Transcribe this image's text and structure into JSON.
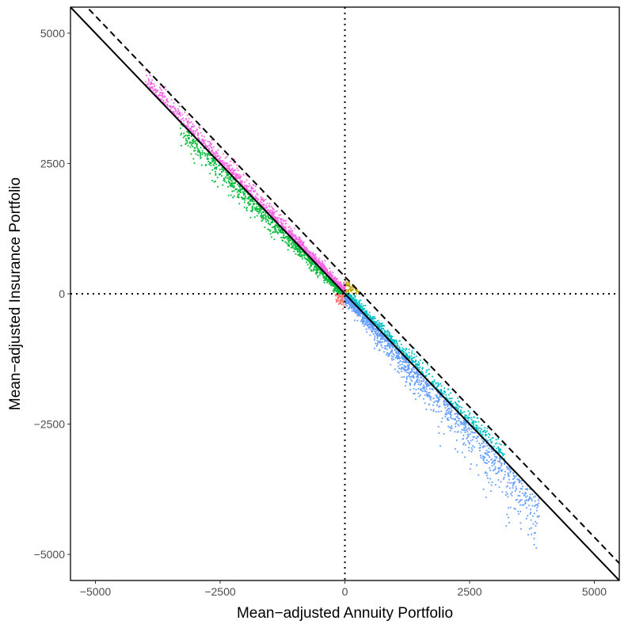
{
  "chart_data": {
    "type": "scatter",
    "title": "",
    "xlabel": "Mean−adjusted Annuity Portfolio",
    "ylabel": "Mean−adjusted Insurance Portfolio",
    "xlim": [
      -5500,
      5500
    ],
    "ylim": [
      -5500,
      5500
    ],
    "x_ticks": [
      {
        "value": -5000,
        "label": "−5000"
      },
      {
        "value": -2500,
        "label": "−2500"
      },
      {
        "value": 0,
        "label": "0"
      },
      {
        "value": 2500,
        "label": "2500"
      },
      {
        "value": 5000,
        "label": "5000"
      }
    ],
    "y_ticks": [
      {
        "value": -5000,
        "label": "−5000"
      },
      {
        "value": -2500,
        "label": "−2500"
      },
      {
        "value": 0,
        "label": "0"
      },
      {
        "value": 2500,
        "label": "2500"
      },
      {
        "value": 5000,
        "label": "5000"
      }
    ],
    "grid": false,
    "legend": "none",
    "reference_lines": [
      {
        "kind": "solid",
        "slope": -1,
        "intercept": 0
      },
      {
        "kind": "dashed",
        "slope": -1,
        "intercept": 330
      },
      {
        "kind": "dotted-vertical",
        "x": 0
      },
      {
        "kind": "dotted-horizontal",
        "y": 0
      }
    ],
    "groups": [
      {
        "color": "#F8766D",
        "region": "x<0, y<0",
        "x_range": [
          -300,
          0
        ],
        "count": 70
      },
      {
        "color": "#B79F00",
        "region": "x>0, y>0, above solid",
        "x_range": [
          0,
          330
        ],
        "count": 60
      },
      {
        "color": "#00BA38",
        "region": "x<0, y>0, below solid",
        "x_range": [
          -3300,
          0
        ],
        "count": 900
      },
      {
        "color": "#F564E3",
        "region": "x<0, y>0, above solid",
        "x_range": [
          -4000,
          0
        ],
        "count": 1300
      },
      {
        "color": "#00BFC4",
        "region": "x>0, y<0, above solid",
        "x_range": [
          0,
          3200
        ],
        "count": 700
      },
      {
        "color": "#619CFF",
        "region": "x>0, y<0, below solid",
        "x_range": [
          0,
          3900
        ],
        "count": 1300
      }
    ]
  }
}
